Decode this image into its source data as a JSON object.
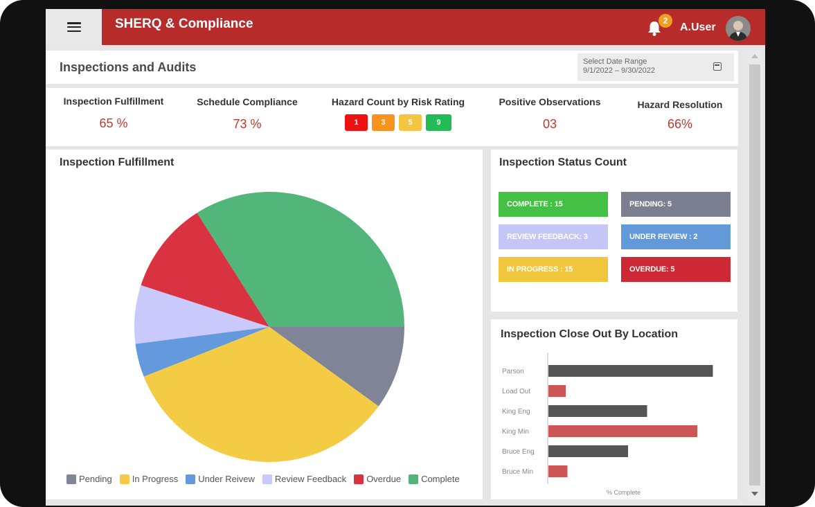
{
  "header": {
    "app_title": "SHERQ & Compliance",
    "notification_count": "2",
    "user_name": "A.User"
  },
  "page": {
    "title": "Inspections and Audits"
  },
  "date_range": {
    "label": "Select Date Range",
    "value": "9/1/2022 – 9/30/2022"
  },
  "kpis": {
    "inspection_fulfillment": {
      "label": "Inspection Fulfillment",
      "value": "65 %"
    },
    "schedule_compliance": {
      "label": "Schedule Compliance",
      "value": "73 %"
    },
    "hazard_count": {
      "label": "Hazard Count by Risk Rating",
      "ratings": [
        {
          "value": "1",
          "color": "#ee1111"
        },
        {
          "value": "3",
          "color": "#f7931e"
        },
        {
          "value": "5",
          "color": "#f4c542"
        },
        {
          "value": "9",
          "color": "#22bb55"
        }
      ]
    },
    "positive_observations": {
      "label": "Positive Observations",
      "value": "03"
    },
    "hazard_resolution": {
      "label": "Hazard Resolution",
      "value": "66%"
    }
  },
  "pie_panel": {
    "title": "Inspection Fulfillment"
  },
  "chart_data": [
    {
      "type": "pie",
      "title": "Inspection Fulfillment",
      "labels": [
        "Pending",
        "In Progress",
        "Under Reivew",
        "Review Feedback",
        "Overdue",
        "Complete"
      ],
      "values": [
        10,
        34,
        4,
        7,
        11,
        34
      ],
      "colors": [
        "#7f8496",
        "#f3cb45",
        "#6499dd",
        "#c9c9fb",
        "#d93241",
        "#52b67b"
      ]
    },
    {
      "type": "bar",
      "orientation": "horizontal",
      "title": "Inspection Close Out By Location",
      "categories": [
        "Parson",
        "Load Out",
        "King Eng",
        "King Min",
        "Bruce  Eng",
        "Bruce Min"
      ],
      "values": [
        95,
        10,
        57,
        86,
        46,
        11
      ],
      "colors": [
        "#555555",
        "#cc5555",
        "#555555",
        "#cc5555",
        "#555555",
        "#cc5555"
      ],
      "xlabel": "% Complete",
      "xlim": [
        0,
        100
      ]
    }
  ],
  "status_panel": {
    "title": "Inspection Status Count",
    "badges": [
      {
        "label": "COMPLETE : 15",
        "color": "#44c144"
      },
      {
        "label": "PENDING:  5",
        "color": "#7c7f8f"
      },
      {
        "label": "REVIEW FEEDBACK: 3",
        "color": "#c6c6f6"
      },
      {
        "label": "UNDER REVIEW : 2",
        "color": "#629ad9"
      },
      {
        "label": "IN PROGRESS : 15",
        "color": "#f0c73c"
      },
      {
        "label": "OVERDUE: 5",
        "color": "#cc2934"
      }
    ]
  }
}
